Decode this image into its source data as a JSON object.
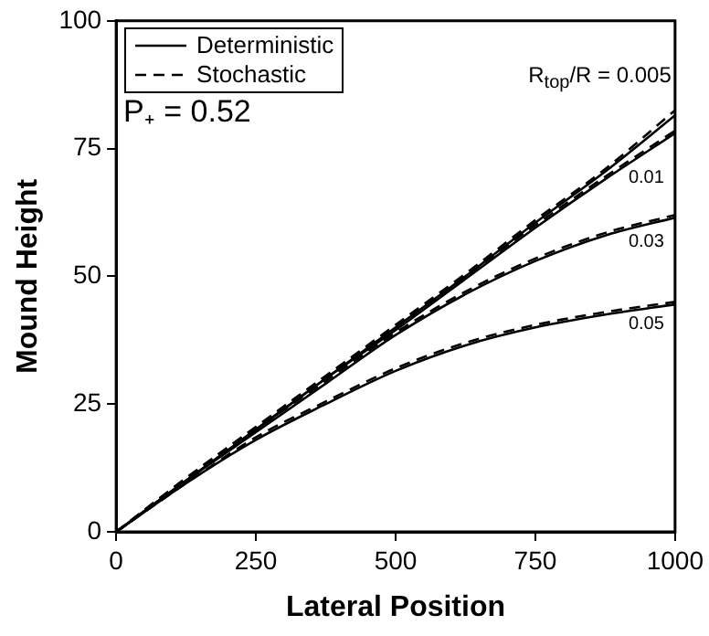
{
  "chart_data": {
    "type": "line",
    "xlabel": "Lateral Position",
    "ylabel": "Mound Height",
    "x": [
      0,
      125,
      250,
      375,
      500,
      625,
      750,
      875,
      1000
    ],
    "series": [
      {
        "name": "Deterministic",
        "color": "#000000",
        "line_style": "solid",
        "values": [
          0,
          10,
          20,
          30,
          40,
          50,
          60.5,
          70.5,
          81.5
        ]
      },
      {
        "name": "Stochastic",
        "color": "#000000",
        "line_style": "dashed",
        "values": [
          0,
          10.5,
          20.5,
          30.5,
          40.5,
          50.5,
          61,
          71,
          82.5
        ]
      },
      {
        "color": "#000000",
        "line_style": "solid",
        "values": [
          0,
          10,
          20,
          30,
          39.5,
          49.5,
          59.5,
          69,
          78
        ]
      },
      {
        "color": "#000000",
        "line_style": "dashed",
        "values": [
          0,
          10.5,
          20.5,
          30.5,
          40,
          50,
          60,
          69.5,
          78.5
        ]
      },
      {
        "color": "#000000",
        "line_style": "solid",
        "values": [
          0,
          10,
          19.5,
          29,
          38.5,
          46.5,
          53,
          58,
          61.5
        ]
      },
      {
        "color": "#000000",
        "line_style": "dashed",
        "values": [
          0,
          10,
          20,
          29.5,
          39,
          47,
          53.5,
          58.5,
          62
        ]
      },
      {
        "color": "#000000",
        "line_style": "solid",
        "values": [
          0,
          9.5,
          18,
          25,
          31.5,
          36.5,
          40,
          42.5,
          44.5
        ]
      },
      {
        "color": "#000000",
        "line_style": "dashed",
        "values": [
          0,
          9.5,
          18.5,
          25.5,
          32,
          37,
          40.5,
          43,
          45
        ]
      }
    ],
    "xlim": [
      0,
      1000
    ],
    "xticks": [
      0,
      250,
      500,
      750,
      1000
    ],
    "ylim": [
      0,
      100
    ],
    "yticks": [
      0,
      25,
      50,
      75,
      100
    ],
    "grid": false,
    "legend": "top left",
    "marker": "none",
    "annotations": [
      "P₊ = 0.52",
      "R$_{top}$/R = 0.005",
      "0.01",
      "0.03",
      "0.05"
    ]
  }
}
